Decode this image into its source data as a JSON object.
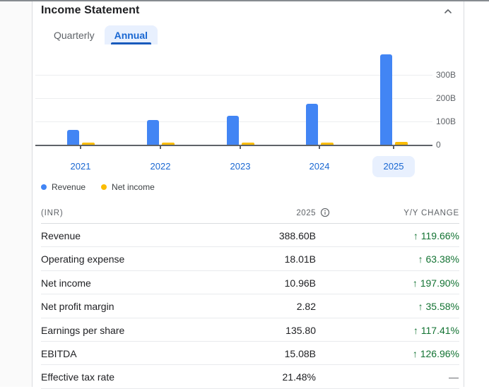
{
  "panel": {
    "title": "Income Statement",
    "collapse_icon": "chevron-up"
  },
  "tabs": [
    {
      "label": "Quarterly",
      "active": false
    },
    {
      "label": "Annual",
      "active": true
    }
  ],
  "colors": {
    "revenue": "#4285f4",
    "net_income": "#fbbc04",
    "positive": "#137333",
    "accent_blue": "#1967d2",
    "chip_bg": "#e8f0fe",
    "axis": "#5f6368"
  },
  "chart_data": {
    "type": "bar",
    "categories": [
      "2021",
      "2022",
      "2023",
      "2024",
      "2025"
    ],
    "series": [
      {
        "name": "Revenue",
        "color": "#4285f4",
        "values": [
          64,
          106,
          124,
          177,
          388.6
        ]
      },
      {
        "name": "Net income",
        "color": "#fbbc04",
        "values": [
          2,
          3,
          3.5,
          3.7,
          10.96
        ]
      }
    ],
    "title": "",
    "xlabel": "",
    "ylabel": "",
    "y_tick_labels": [
      "300B",
      "200B",
      "100B",
      "0"
    ],
    "y_tick_values": [
      300,
      200,
      100,
      0
    ],
    "ylim": [
      0,
      400
    ],
    "grid": true,
    "legend_position": "bottom-left",
    "selected_category": "2025"
  },
  "legend": [
    {
      "label": "Revenue",
      "color": "#4285f4"
    },
    {
      "label": "Net income",
      "color": "#fbbc04"
    }
  ],
  "table": {
    "currency_header": "(INR)",
    "period_header": "2025",
    "change_header": "Y/Y CHANGE",
    "up_arrow": "↑",
    "rows": [
      {
        "label": "Revenue",
        "value": "388.60B",
        "change": "119.66%",
        "direction": "up"
      },
      {
        "label": "Operating expense",
        "value": "18.01B",
        "change": "63.38%",
        "direction": "up"
      },
      {
        "label": "Net income",
        "value": "10.96B",
        "change": "197.90%",
        "direction": "up"
      },
      {
        "label": "Net profit margin",
        "value": "2.82",
        "change": "35.58%",
        "direction": "up"
      },
      {
        "label": "Earnings per share",
        "value": "135.80",
        "change": "117.41%",
        "direction": "up"
      },
      {
        "label": "EBITDA",
        "value": "15.08B",
        "change": "126.96%",
        "direction": "up"
      },
      {
        "label": "Effective tax rate",
        "value": "21.48%",
        "change": "—",
        "direction": "none"
      }
    ]
  }
}
